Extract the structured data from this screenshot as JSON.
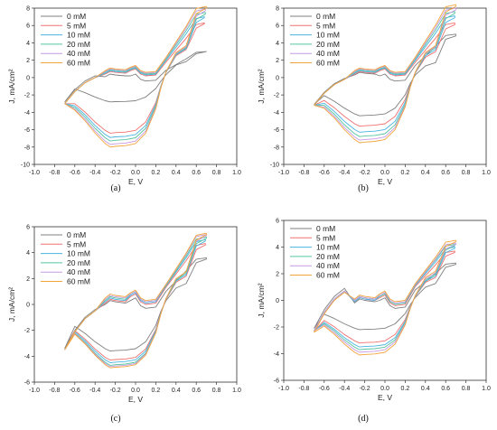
{
  "figure": {
    "panel_labels": [
      "(a)",
      "(b)",
      "(c)",
      "(d)"
    ]
  },
  "chart_data": [
    {
      "type": "line",
      "panel": "(a)",
      "xlabel": "E, V",
      "ylabel": "J, mA/cm²",
      "xlim": [
        -1.0,
        1.0
      ],
      "ylim": [
        -10,
        8
      ],
      "xticks": [
        "-1.0",
        "-0.8",
        "-0.6",
        "-0.4",
        "-0.2",
        "0.0",
        "0.2",
        "0.4",
        "0.6",
        "0.8",
        "1.0"
      ],
      "yticks": [
        "-10",
        "-8",
        "-6",
        "-4",
        "-2",
        "0",
        "2",
        "4",
        "6",
        "8"
      ],
      "legend_position": "top-left",
      "series": [
        {
          "name": "0 mM",
          "color": "#7f7f7f",
          "vmax": 0.7,
          "anodic": {
            "start": -2.8,
            "p1": 0.4,
            "p2": 0.4,
            "peak": 3.0
          },
          "cathodic": {
            "vmax_val": 3.0,
            "top": 1.6,
            "valley": -2.8,
            "start": -2.8
          }
        },
        {
          "name": "5 mM",
          "color": "#f07070",
          "vmax": 0.68,
          "anodic": {
            "start": -3.0,
            "p1": 0.7,
            "p2": 1.0,
            "peak": 6.3
          },
          "cathodic": {
            "vmax_val": 6.2,
            "top": 2.8,
            "valley": -6.4,
            "start": -3.0
          }
        },
        {
          "name": "10 mM",
          "color": "#49b3e0",
          "vmax": 0.68,
          "anodic": {
            "start": -3.0,
            "p1": 0.8,
            "p2": 1.1,
            "peak": 7.0
          },
          "cathodic": {
            "vmax_val": 6.9,
            "top": 2.9,
            "valley": -6.9,
            "start": -3.0
          }
        },
        {
          "name": "20 mM",
          "color": "#55c4a0",
          "vmax": 0.69,
          "anodic": {
            "start": -3.0,
            "p1": 0.9,
            "p2": 1.2,
            "peak": 7.5
          },
          "cathodic": {
            "vmax_val": 7.3,
            "top": 3.0,
            "valley": -7.3,
            "start": -3.0
          }
        },
        {
          "name": "40 mM",
          "color": "#c59ae0",
          "vmax": 0.69,
          "anodic": {
            "start": -3.0,
            "p1": 1.0,
            "p2": 1.3,
            "peak": 7.9
          },
          "cathodic": {
            "vmax_val": 7.7,
            "top": 3.1,
            "valley": -7.7,
            "start": -3.0
          }
        },
        {
          "name": "60 mM",
          "color": "#f2a53a",
          "vmax": 0.7,
          "anodic": {
            "start": -3.0,
            "p1": 1.1,
            "p2": 1.4,
            "peak": 8.2
          },
          "cathodic": {
            "vmax_val": 8.0,
            "top": 3.2,
            "valley": -8.0,
            "start": -3.0
          }
        }
      ]
    },
    {
      "type": "line",
      "panel": "(b)",
      "xlabel": "E, V",
      "ylabel": "J, mA/cm²",
      "xlim": [
        -1.0,
        1.0
      ],
      "ylim": [
        -10,
        8
      ],
      "xticks": [
        "-1.0",
        "-0.8",
        "-0.6",
        "-0.4",
        "-0.2",
        "0.0",
        "0.2",
        "0.4",
        "0.6",
        "0.8",
        "1.0"
      ],
      "yticks": [
        "-10",
        "-8",
        "-6",
        "-4",
        "-2",
        "0",
        "2",
        "4",
        "6",
        "8"
      ],
      "legend_position": "top-left",
      "series": [
        {
          "name": "0 mM",
          "color": "#7f7f7f",
          "vmax": 0.7,
          "anodic": {
            "start": -3.1,
            "p1": 0.6,
            "p2": 0.4,
            "peak": 5.0
          },
          "cathodic": {
            "vmax_val": 4.8,
            "top": 1.5,
            "valley": -4.4,
            "start": -3.1
          }
        },
        {
          "name": "5 mM",
          "color": "#f07070",
          "vmax": 0.69,
          "anodic": {
            "start": -3.2,
            "p1": 0.7,
            "p2": 1.0,
            "peak": 6.3
          },
          "cathodic": {
            "vmax_val": 6.1,
            "top": 2.6,
            "valley": -5.6,
            "start": -3.2
          }
        },
        {
          "name": "10 mM",
          "color": "#49b3e0",
          "vmax": 0.69,
          "anodic": {
            "start": -3.2,
            "p1": 0.8,
            "p2": 1.1,
            "peak": 7.1
          },
          "cathodic": {
            "vmax_val": 6.9,
            "top": 2.8,
            "valley": -6.3,
            "start": -3.2
          }
        },
        {
          "name": "20 mM",
          "color": "#55c4a0",
          "vmax": 0.69,
          "anodic": {
            "start": -3.2,
            "p1": 0.9,
            "p2": 1.2,
            "peak": 7.6
          },
          "cathodic": {
            "vmax_val": 7.4,
            "top": 3.0,
            "valley": -6.8,
            "start": -3.2
          }
        },
        {
          "name": "40 mM",
          "color": "#c59ae0",
          "vmax": 0.7,
          "anodic": {
            "start": -3.2,
            "p1": 1.0,
            "p2": 1.3,
            "peak": 8.0
          },
          "cathodic": {
            "vmax_val": 7.8,
            "top": 3.1,
            "valley": -7.2,
            "start": -3.2
          }
        },
        {
          "name": "60 mM",
          "color": "#f2a53a",
          "vmax": 0.7,
          "anodic": {
            "start": -3.2,
            "p1": 1.1,
            "p2": 1.4,
            "peak": 8.4
          },
          "cathodic": {
            "vmax_val": 8.2,
            "top": 3.2,
            "valley": -7.5,
            "start": -3.2
          }
        }
      ]
    },
    {
      "type": "line",
      "panel": "(c)",
      "xlabel": "E, V",
      "ylabel": "J, mA/cm²",
      "xlim": [
        -1.0,
        1.0
      ],
      "ylim": [
        -6,
        6
      ],
      "xticks": [
        "-1.0",
        "-0.8",
        "-0.6",
        "-0.4",
        "-0.2",
        "0.0",
        "0.2",
        "0.4",
        "0.6",
        "0.8",
        "1.0"
      ],
      "yticks": [
        "-6",
        "-4",
        "-2",
        "0",
        "2",
        "4",
        "6"
      ],
      "legend_position": "top-left",
      "series": [
        {
          "name": "0 mM",
          "color": "#7f7f7f",
          "vmax": 0.7,
          "anodic": {
            "start": -3.4,
            "p1": 0.3,
            "p2": 0.5,
            "peak": 3.6
          },
          "cathodic": {
            "vmax_val": 3.5,
            "top": 1.4,
            "valley": -3.6,
            "start": -3.4
          }
        },
        {
          "name": "5 mM",
          "color": "#f07070",
          "vmax": 0.69,
          "anodic": {
            "start": -3.5,
            "p1": 0.4,
            "p2": 0.8,
            "peak": 4.7
          },
          "cathodic": {
            "vmax_val": 4.6,
            "top": 1.9,
            "valley": -4.3,
            "start": -3.5
          }
        },
        {
          "name": "10 mM",
          "color": "#49b3e0",
          "vmax": 0.69,
          "anodic": {
            "start": -3.5,
            "p1": 0.5,
            "p2": 0.9,
            "peak": 5.0
          },
          "cathodic": {
            "vmax_val": 4.9,
            "top": 2.0,
            "valley": -4.5,
            "start": -3.5
          }
        },
        {
          "name": "20 mM",
          "color": "#55c4a0",
          "vmax": 0.7,
          "anodic": {
            "start": -3.5,
            "p1": 0.6,
            "p2": 1.0,
            "peak": 5.2
          },
          "cathodic": {
            "vmax_val": 5.1,
            "top": 2.1,
            "valley": -4.7,
            "start": -3.5
          }
        },
        {
          "name": "40 mM",
          "color": "#c59ae0",
          "vmax": 0.7,
          "anodic": {
            "start": -3.5,
            "p1": 0.7,
            "p2": 1.0,
            "peak": 5.4
          },
          "cathodic": {
            "vmax_val": 5.3,
            "top": 2.2,
            "valley": -4.8,
            "start": -3.5
          }
        },
        {
          "name": "60 mM",
          "color": "#f2a53a",
          "vmax": 0.7,
          "anodic": {
            "start": -3.5,
            "p1": 0.8,
            "p2": 1.1,
            "peak": 5.5
          },
          "cathodic": {
            "vmax_val": 5.4,
            "top": 2.2,
            "valley": -4.9,
            "start": -3.5
          }
        }
      ]
    },
    {
      "type": "line",
      "panel": "(d)",
      "xlabel": "E, V",
      "ylabel": "J, mA/cm²",
      "xlim": [
        -1.0,
        1.0
      ],
      "ylim": [
        -6,
        6
      ],
      "xticks": [
        "-1.0",
        "-0.8",
        "-0.6",
        "-0.4",
        "-0.2",
        "0.0",
        "0.2",
        "0.4",
        "0.6",
        "0.8",
        "1.0"
      ],
      "yticks": [
        "-6",
        "-4",
        "-2",
        "0",
        "2",
        "4",
        "6"
      ],
      "legend_position": "top-left",
      "series": [
        {
          "name": "0 mM",
          "color": "#7f7f7f",
          "vmax": 0.7,
          "anodic": {
            "start": -2.1,
            "p1": 0.1,
            "p2": 0.2,
            "peak": 2.8
          },
          "cathodic": {
            "vmax_val": 2.7,
            "top": 1.1,
            "valley": -2.2,
            "start": -2.1
          }
        },
        {
          "name": "5 mM",
          "color": "#f07070",
          "vmax": 0.69,
          "anodic": {
            "start": -2.3,
            "p1": 0.2,
            "p2": 0.4,
            "peak": 3.7
          },
          "cathodic": {
            "vmax_val": 3.6,
            "top": 1.5,
            "valley": -3.2,
            "start": -2.3
          }
        },
        {
          "name": "10 mM",
          "color": "#49b3e0",
          "vmax": 0.69,
          "anodic": {
            "start": -2.3,
            "p1": 0.2,
            "p2": 0.5,
            "peak": 4.0
          },
          "cathodic": {
            "vmax_val": 3.9,
            "top": 1.6,
            "valley": -3.5,
            "start": -2.3
          }
        },
        {
          "name": "20 mM",
          "color": "#55c4a0",
          "vmax": 0.69,
          "anodic": {
            "start": -2.3,
            "p1": 0.3,
            "p2": 0.5,
            "peak": 4.2
          },
          "cathodic": {
            "vmax_val": 4.1,
            "top": 1.7,
            "valley": -3.7,
            "start": -2.3
          }
        },
        {
          "name": "40 mM",
          "color": "#c59ae0",
          "vmax": 0.7,
          "anodic": {
            "start": -2.3,
            "p1": 0.3,
            "p2": 0.6,
            "peak": 4.3
          },
          "cathodic": {
            "vmax_val": 4.2,
            "top": 1.8,
            "valley": -3.9,
            "start": -2.3
          }
        },
        {
          "name": "60 mM",
          "color": "#f2a53a",
          "vmax": 0.7,
          "anodic": {
            "start": -2.4,
            "p1": 0.4,
            "p2": 0.7,
            "peak": 4.5
          },
          "cathodic": {
            "vmax_val": 4.4,
            "top": 1.9,
            "valley": -4.1,
            "start": -2.4
          }
        }
      ]
    }
  ]
}
